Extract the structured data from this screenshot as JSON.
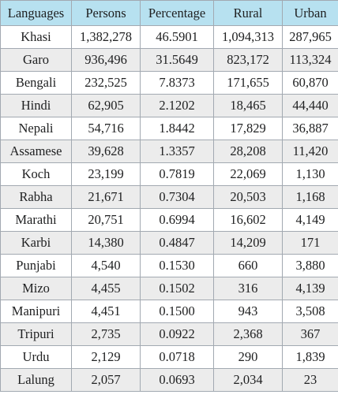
{
  "table": {
    "headers": [
      "Languages",
      "Persons",
      "Percentage",
      "Rural",
      "Urban"
    ],
    "rows": [
      {
        "language": "Khasi",
        "persons": "1,382,278",
        "percentage": "46.5901",
        "rural": "1,094,313",
        "urban": "287,965"
      },
      {
        "language": "Garo",
        "persons": "936,496",
        "percentage": "31.5649",
        "rural": "823,172",
        "urban": "113,324"
      },
      {
        "language": "Bengali",
        "persons": "232,525",
        "percentage": "7.8373",
        "rural": "171,655",
        "urban": "60,870"
      },
      {
        "language": "Hindi",
        "persons": "62,905",
        "percentage": "2.1202",
        "rural": "18,465",
        "urban": "44,440"
      },
      {
        "language": "Nepali",
        "persons": "54,716",
        "percentage": "1.8442",
        "rural": "17,829",
        "urban": "36,887"
      },
      {
        "language": "Assamese",
        "persons": "39,628",
        "percentage": "1.3357",
        "rural": "28,208",
        "urban": "11,420"
      },
      {
        "language": "Koch",
        "persons": "23,199",
        "percentage": "0.7819",
        "rural": "22,069",
        "urban": "1,130"
      },
      {
        "language": "Rabha",
        "persons": "21,671",
        "percentage": "0.7304",
        "rural": "20,503",
        "urban": "1,168"
      },
      {
        "language": "Marathi",
        "persons": "20,751",
        "percentage": "0.6994",
        "rural": "16,602",
        "urban": "4,149"
      },
      {
        "language": "Karbi",
        "persons": "14,380",
        "percentage": "0.4847",
        "rural": "14,209",
        "urban": "171"
      },
      {
        "language": "Punjabi",
        "persons": "4,540",
        "percentage": "0.1530",
        "rural": "660",
        "urban": "3,880"
      },
      {
        "language": "Mizo",
        "persons": "4,455",
        "percentage": "0.1502",
        "rural": "316",
        "urban": "4,139"
      },
      {
        "language": "Manipuri",
        "persons": "4,451",
        "percentage": "0.1500",
        "rural": "943",
        "urban": "3,508"
      },
      {
        "language": "Tripuri",
        "persons": "2,735",
        "percentage": "0.0922",
        "rural": "2,368",
        "urban": "367"
      },
      {
        "language": "Urdu",
        "persons": "2,129",
        "percentage": "0.0718",
        "rural": "290",
        "urban": "1,839"
      },
      {
        "language": "Lalung",
        "persons": "2,057",
        "percentage": "0.0693",
        "rural": "2,034",
        "urban": "23"
      }
    ]
  },
  "colors": {
    "header_background": "#b7e1f0",
    "row_alt_background": "#ececec",
    "border": "#a2a9b1",
    "text": "#202122"
  }
}
